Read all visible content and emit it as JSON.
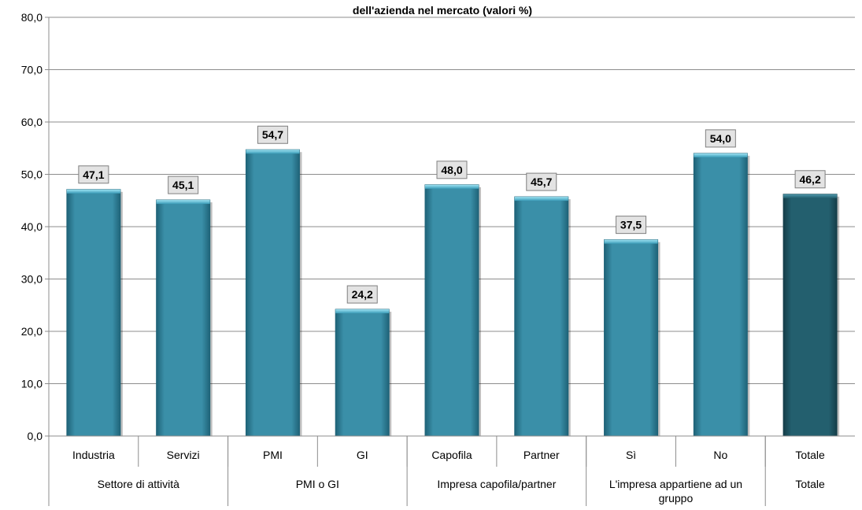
{
  "chart_data": {
    "type": "bar",
    "title": "dell'azienda nel mercato (valori %)",
    "categories": [
      "Industria",
      "Servizi",
      "PMI",
      "GI",
      "Capofila",
      "Partner",
      "Sì",
      "No",
      "Totale"
    ],
    "values": [
      47.1,
      45.1,
      54.7,
      24.2,
      48.0,
      45.7,
      37.5,
      54.0,
      46.2
    ],
    "value_labels": [
      "47,1",
      "45,1",
      "54,7",
      "24,2",
      "48,0",
      "45,7",
      "37,5",
      "54,0",
      "46,2"
    ],
    "groups": [
      {
        "label": "Settore di attività",
        "categories": [
          "Industria",
          "Servizi"
        ]
      },
      {
        "label": "PMI o GI",
        "categories": [
          "PMI",
          "GI"
        ]
      },
      {
        "label": "Impresa capofila/partner",
        "categories": [
          "Capofila",
          "Partner"
        ]
      },
      {
        "label": "L'impresa appartiene ad un gruppo",
        "categories": [
          "Sì",
          "No"
        ]
      },
      {
        "label": "Totale",
        "categories": [
          "Totale"
        ]
      }
    ],
    "ylim": [
      0,
      80
    ],
    "yticks": [
      0,
      10,
      20,
      30,
      40,
      50,
      60,
      70,
      80
    ],
    "ytick_labels": [
      "0,0",
      "10,0",
      "20,0",
      "30,0",
      "40,0",
      "50,0",
      "60,0",
      "70,0",
      "80,0"
    ],
    "grid": true,
    "colors": {
      "bar": "#3a8fa8",
      "bar_total": "#235f6e",
      "gridline": "#8c8c8c",
      "label_box": "#e3e3e3"
    }
  }
}
